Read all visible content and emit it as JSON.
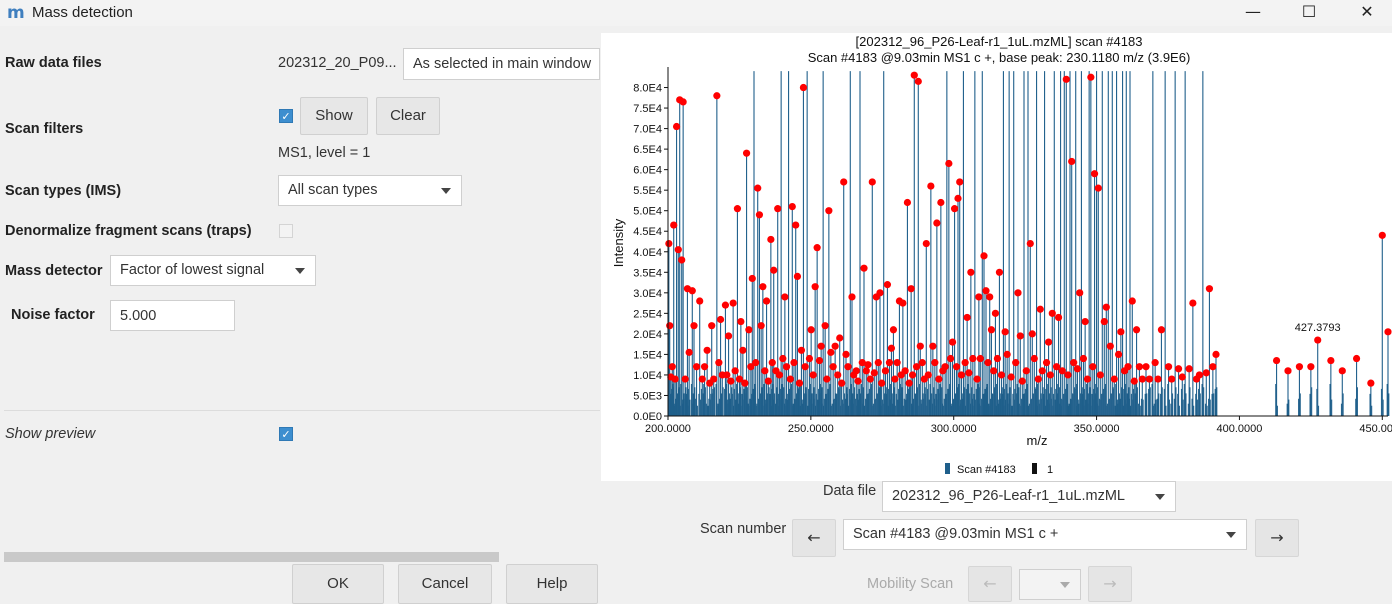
{
  "window": {
    "app_icon": "m",
    "title": "Mass detection",
    "minimize": "—",
    "maximize": "☐",
    "close": "✕"
  },
  "form": {
    "raw_data_files": {
      "label": "Raw data files",
      "value": "202312_20_P09...",
      "combo": "As selected in main window"
    },
    "scan_filters": {
      "label": "Scan filters",
      "checked": true,
      "show": "Show",
      "clear": "Clear",
      "summary": "MS1, level = 1"
    },
    "scan_types": {
      "label": "Scan types (IMS)",
      "value": "All scan types"
    },
    "denormalize": {
      "label": "Denormalize fragment scans (traps)",
      "checked": false
    },
    "mass_detector": {
      "label": "Mass detector",
      "value": "Factor of lowest signal"
    },
    "noise_factor": {
      "label": "Noise factor",
      "value": "5.000"
    },
    "show_preview": {
      "label": "Show preview",
      "checked": true
    }
  },
  "buttons": {
    "ok": "OK",
    "cancel": "Cancel",
    "help": "Help"
  },
  "preview": {
    "data_file_label": "Data file",
    "data_file_value": "202312_96_P26-Leaf-r1_1uL.mzML",
    "scan_number_label": "Scan number",
    "scan_number_value": "Scan #4183 @9.03min MS1 c +",
    "prev_arrow": "←",
    "next_arrow": "→",
    "mobility_label": "Mobility Scan",
    "mobility_prev": "←",
    "mobility_next": "→"
  },
  "chart_data": {
    "type": "bar",
    "title": "[202312_96_P26-Leaf-r1_1uL.mzML] scan #4183",
    "subtitle": "Scan #4183 @9.03min MS1 c +, base peak: 230.1180 m/z (3.9E6)",
    "xlabel": "m/z",
    "ylabel": "Intensity",
    "xlim": [
      200,
      452
    ],
    "ylim": [
      0,
      85000
    ],
    "x_ticks": [
      "200.0000",
      "250.0000",
      "300.0000",
      "350.0000",
      "400.0000",
      "450.0000"
    ],
    "y_ticks": [
      "0.0E0",
      "5.0E3",
      "1.0E4",
      "1.5E4",
      "2.0E4",
      "2.5E4",
      "3.0E4",
      "3.5E4",
      "4.0E4",
      "4.5E4",
      "5.0E4",
      "5.5E4",
      "6.0E4",
      "6.5E4",
      "7.0E4",
      "7.5E4",
      "8.0E4"
    ],
    "annotation": {
      "label": "427.3793",
      "x": 427.38,
      "y": 18500
    },
    "legend": [
      {
        "name": "Scan #4183",
        "color": "#1f5f8b"
      },
      {
        "name": "1",
        "color": "#111111"
      }
    ],
    "colors": {
      "scan": "#1f5f8b",
      "peaks": "#ff0000"
    },
    "peaks": [
      [
        200.3,
        42000
      ],
      [
        200.6,
        22000
      ],
      [
        201.0,
        9500
      ],
      [
        201.5,
        12000
      ],
      [
        202.0,
        46500
      ],
      [
        202.5,
        9000
      ],
      [
        203.0,
        70500
      ],
      [
        203.6,
        40500
      ],
      [
        204.1,
        77000
      ],
      [
        204.8,
        38000
      ],
      [
        205.3,
        76500
      ],
      [
        206.0,
        9000
      ],
      [
        206.8,
        31000
      ],
      [
        207.4,
        15500
      ],
      [
        208.5,
        30500
      ],
      [
        209.1,
        22000
      ],
      [
        210.0,
        12000
      ],
      [
        211.1,
        28000
      ],
      [
        212.0,
        9000
      ],
      [
        212.8,
        12000
      ],
      [
        213.7,
        16000
      ],
      [
        214.6,
        8000
      ],
      [
        215.3,
        22000
      ],
      [
        216.0,
        9000
      ],
      [
        217.1,
        78000
      ],
      [
        217.8,
        13000
      ],
      [
        218.4,
        23500
      ],
      [
        219.0,
        10000
      ],
      [
        220.1,
        27000
      ],
      [
        220.6,
        10000
      ],
      [
        221.2,
        19500
      ],
      [
        222.0,
        8500
      ],
      [
        222.8,
        27500
      ],
      [
        223.5,
        11000
      ],
      [
        224.3,
        50500
      ],
      [
        225.0,
        9000
      ],
      [
        225.5,
        23000
      ],
      [
        226.2,
        16000
      ],
      [
        226.9,
        8000
      ],
      [
        227.5,
        64000
      ],
      [
        228.3,
        21000
      ],
      [
        229.0,
        12000
      ],
      [
        229.5,
        33500
      ],
      [
        230.1,
        84000
      ],
      [
        230.7,
        13000
      ],
      [
        231.4,
        55500
      ],
      [
        232.0,
        49000
      ],
      [
        232.6,
        22000
      ],
      [
        233.2,
        31500
      ],
      [
        233.9,
        11000
      ],
      [
        234.5,
        28000
      ],
      [
        235.1,
        8500
      ],
      [
        236.0,
        43000
      ],
      [
        236.5,
        13000
      ],
      [
        237.0,
        35500
      ],
      [
        237.8,
        11000
      ],
      [
        238.4,
        50500
      ],
      [
        239.0,
        10000
      ],
      [
        239.6,
        84000
      ],
      [
        240.2,
        14000
      ],
      [
        240.9,
        29000
      ],
      [
        241.5,
        12000
      ],
      [
        242.2,
        84000
      ],
      [
        242.8,
        9000
      ],
      [
        243.5,
        51000
      ],
      [
        244.1,
        13000
      ],
      [
        244.7,
        46500
      ],
      [
        245.3,
        34000
      ],
      [
        246.0,
        8000
      ],
      [
        246.7,
        16000
      ],
      [
        247.4,
        80000
      ],
      [
        248.0,
        12000
      ],
      [
        248.7,
        84000
      ],
      [
        249.5,
        14000
      ],
      [
        250.1,
        21000
      ],
      [
        250.8,
        10000
      ],
      [
        251.5,
        31500
      ],
      [
        252.2,
        41000
      ],
      [
        253.0,
        13500
      ],
      [
        253.6,
        17000
      ],
      [
        254.3,
        84000
      ],
      [
        255.0,
        22000
      ],
      [
        255.6,
        9000
      ],
      [
        256.3,
        50000
      ],
      [
        257.0,
        15500
      ],
      [
        257.8,
        12000
      ],
      [
        258.5,
        17000
      ],
      [
        259.4,
        10000
      ],
      [
        260.1,
        19000
      ],
      [
        260.8,
        8000
      ],
      [
        261.5,
        57000
      ],
      [
        262.3,
        15000
      ],
      [
        263.0,
        12000
      ],
      [
        263.8,
        84000
      ],
      [
        264.4,
        29000
      ],
      [
        265.0,
        10000
      ],
      [
        265.9,
        11000
      ],
      [
        266.5,
        8500
      ],
      [
        267.2,
        84000
      ],
      [
        268.0,
        13000
      ],
      [
        268.6,
        36000
      ],
      [
        269.4,
        11000
      ],
      [
        270.0,
        12500
      ],
      [
        270.8,
        9000
      ],
      [
        271.5,
        57000
      ],
      [
        272.2,
        10500
      ],
      [
        272.9,
        29000
      ],
      [
        273.6,
        13000
      ],
      [
        274.2,
        30000
      ],
      [
        274.8,
        8000
      ],
      [
        275.5,
        84000
      ],
      [
        276.1,
        11000
      ],
      [
        276.8,
        32000
      ],
      [
        277.5,
        13000
      ],
      [
        278.2,
        16500
      ],
      [
        278.9,
        21000
      ],
      [
        279.4,
        9000
      ],
      [
        280.2,
        13000
      ],
      [
        281.0,
        28000
      ],
      [
        281.6,
        10000
      ],
      [
        282.2,
        27500
      ],
      [
        283.0,
        11000
      ],
      [
        283.8,
        52000
      ],
      [
        284.4,
        8000
      ],
      [
        285.1,
        31000
      ],
      [
        285.6,
        10000
      ],
      [
        286.2,
        83000
      ],
      [
        287.0,
        12000
      ],
      [
        287.6,
        81500
      ],
      [
        288.3,
        17000
      ],
      [
        289.0,
        13000
      ],
      [
        289.7,
        9000
      ],
      [
        290.4,
        42000
      ],
      [
        291.1,
        10000
      ],
      [
        292.0,
        56000
      ],
      [
        292.7,
        17000
      ],
      [
        293.4,
        13000
      ],
      [
        294.1,
        47000
      ],
      [
        294.8,
        9000
      ],
      [
        295.5,
        52000
      ],
      [
        296.2,
        11000
      ],
      [
        297.0,
        12000
      ],
      [
        297.6,
        84000
      ],
      [
        298.3,
        61500
      ],
      [
        298.9,
        14000
      ],
      [
        299.6,
        18000
      ],
      [
        300.3,
        50500
      ],
      [
        301.0,
        12000
      ],
      [
        301.5,
        53000
      ],
      [
        302.1,
        57000
      ],
      [
        302.7,
        10000
      ],
      [
        303.4,
        84000
      ],
      [
        304.0,
        13000
      ],
      [
        304.7,
        24000
      ],
      [
        305.3,
        10500
      ],
      [
        306.0,
        35000
      ],
      [
        306.7,
        14000
      ],
      [
        307.4,
        84000
      ],
      [
        308.2,
        9000
      ],
      [
        308.8,
        29000
      ],
      [
        309.3,
        14000
      ],
      [
        310.0,
        84000
      ],
      [
        310.6,
        39000
      ],
      [
        311.3,
        30500
      ],
      [
        312.0,
        13000
      ],
      [
        312.6,
        29000
      ],
      [
        313.2,
        21000
      ],
      [
        314.0,
        11000
      ],
      [
        314.6,
        25000
      ],
      [
        315.3,
        14000
      ],
      [
        316.0,
        35000
      ],
      [
        316.7,
        10000
      ],
      [
        317.4,
        84000
      ],
      [
        318.0,
        20500
      ],
      [
        318.7,
        15000
      ],
      [
        319.4,
        84000
      ],
      [
        320.1,
        9500
      ],
      [
        321.0,
        84000
      ],
      [
        321.7,
        13000
      ],
      [
        322.5,
        30000
      ],
      [
        323.3,
        19500
      ],
      [
        324.0,
        8500
      ],
      [
        324.6,
        84000
      ],
      [
        325.4,
        11000
      ],
      [
        326.0,
        84000
      ],
      [
        326.8,
        42000
      ],
      [
        327.5,
        20000
      ],
      [
        328.2,
        14000
      ],
      [
        329.0,
        84000
      ],
      [
        329.6,
        9000
      ],
      [
        330.3,
        26000
      ],
      [
        331.0,
        11000
      ],
      [
        331.8,
        84000
      ],
      [
        332.5,
        13000
      ],
      [
        333.2,
        18000
      ],
      [
        333.8,
        10000
      ],
      [
        334.5,
        25000
      ],
      [
        335.2,
        84000
      ],
      [
        336.0,
        12000
      ],
      [
        336.7,
        24000
      ],
      [
        337.4,
        84000
      ],
      [
        338.0,
        11000
      ],
      [
        338.7,
        84000
      ],
      [
        339.4,
        82000
      ],
      [
        340.0,
        10000
      ],
      [
        340.7,
        84000
      ],
      [
        341.3,
        62000
      ],
      [
        342.0,
        13000
      ],
      [
        342.7,
        84000
      ],
      [
        343.3,
        11500
      ],
      [
        344.1,
        30000
      ],
      [
        344.7,
        84000
      ],
      [
        345.4,
        14000
      ],
      [
        346.0,
        23000
      ],
      [
        346.8,
        9000
      ],
      [
        347.4,
        84000
      ],
      [
        348.0,
        82500
      ],
      [
        348.7,
        12000
      ],
      [
        349.3,
        59000
      ],
      [
        350.0,
        84000
      ],
      [
        350.6,
        55500
      ],
      [
        351.3,
        10000
      ],
      [
        352.0,
        84000
      ],
      [
        352.7,
        23000
      ],
      [
        353.4,
        26500
      ],
      [
        354.1,
        84000
      ],
      [
        354.8,
        17000
      ],
      [
        355.5,
        84000
      ],
      [
        356.2,
        9000
      ],
      [
        357.0,
        84000
      ],
      [
        357.7,
        15000
      ],
      [
        358.5,
        20500
      ],
      [
        359.1,
        84000
      ],
      [
        359.8,
        11000
      ],
      [
        360.4,
        84000
      ],
      [
        361.0,
        12000
      ],
      [
        361.7,
        84000
      ],
      [
        362.5,
        28000
      ],
      [
        363.2,
        8500
      ],
      [
        364.0,
        21000
      ],
      [
        365.0,
        12000
      ],
      [
        366.0,
        9000
      ],
      [
        367.3,
        12000
      ],
      [
        368.5,
        9000
      ],
      [
        369.7,
        84000
      ],
      [
        370.5,
        13000
      ],
      [
        371.5,
        9000
      ],
      [
        372.7,
        21000
      ],
      [
        374.0,
        84000
      ],
      [
        375.2,
        12000
      ],
      [
        376.3,
        9000
      ],
      [
        377.5,
        84000
      ],
      [
        378.7,
        11500
      ],
      [
        380.0,
        9500
      ],
      [
        381.0,
        84000
      ],
      [
        382.4,
        11500
      ],
      [
        383.7,
        27500
      ],
      [
        385.0,
        9000
      ],
      [
        386.0,
        10000
      ],
      [
        387.2,
        84000
      ],
      [
        388.4,
        10500
      ],
      [
        389.5,
        31000
      ],
      [
        390.7,
        12000
      ],
      [
        391.8,
        15000
      ],
      [
        413.0,
        13500
      ],
      [
        417.0,
        11000
      ],
      [
        421.0,
        12000
      ],
      [
        425.0,
        12000
      ],
      [
        427.4,
        18500
      ],
      [
        432.0,
        13500
      ],
      [
        436.0,
        11000
      ],
      [
        441.0,
        14000
      ],
      [
        446.0,
        8000
      ],
      [
        450.0,
        44000
      ],
      [
        452.0,
        20500
      ]
    ]
  }
}
